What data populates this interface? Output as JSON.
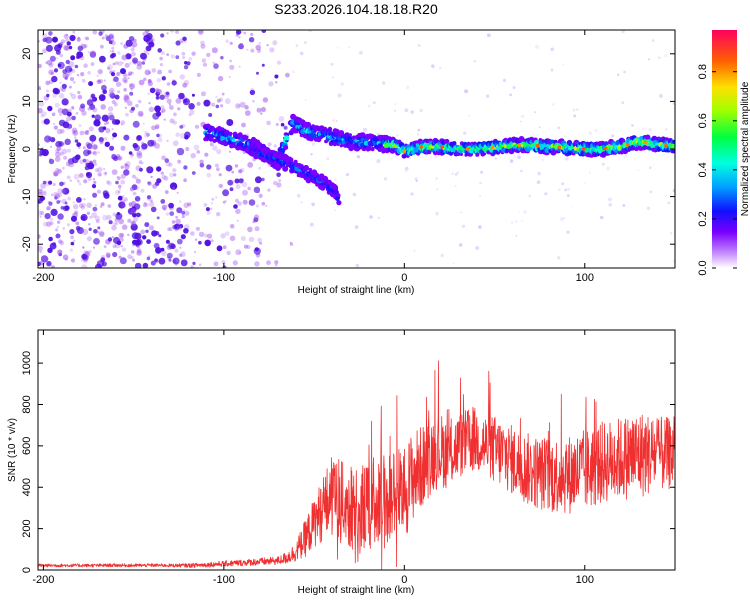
{
  "title": "S233.2026.104.18.18.R20",
  "colors": {
    "snr_line": "#f03030",
    "dot_low": "#a050f0",
    "dot_mid": "#5010e0"
  },
  "chart_data": [
    {
      "type": "heatmap",
      "title": "S233.2026.104.18.18.R20",
      "xlabel": "Height of straight line (km)",
      "ylabel": "Frequency (Hz)",
      "xlim": [
        -203,
        150
      ],
      "ylim": [
        -25,
        25
      ],
      "xticks": [
        -200,
        -100,
        0,
        100
      ],
      "yticks": [
        -20,
        -10,
        0,
        10,
        20
      ],
      "ridge": [
        {
          "x": -108,
          "y": 3.5
        },
        {
          "x": -100,
          "y": 2.5
        },
        {
          "x": -90,
          "y": 1.5
        },
        {
          "x": -80,
          "y": 0
        },
        {
          "x": -70,
          "y": -3
        },
        {
          "x": -62,
          "y": 5.5
        },
        {
          "x": -55,
          "y": 4
        },
        {
          "x": -45,
          "y": 3
        },
        {
          "x": -35,
          "y": 2
        },
        {
          "x": -25,
          "y": 1.5
        },
        {
          "x": -15,
          "y": 1.2
        },
        {
          "x": -5,
          "y": 0.8
        },
        {
          "x": 0,
          "y": -0.5
        },
        {
          "x": 10,
          "y": 0.5
        },
        {
          "x": 20,
          "y": 0.5
        },
        {
          "x": 30,
          "y": 0
        },
        {
          "x": 40,
          "y": 0
        },
        {
          "x": 50,
          "y": 0.3
        },
        {
          "x": 60,
          "y": 0.8
        },
        {
          "x": 70,
          "y": 0.8
        },
        {
          "x": 80,
          "y": 0.5
        },
        {
          "x": 90,
          "y": 0.3
        },
        {
          "x": 100,
          "y": 0
        },
        {
          "x": 110,
          "y": 0
        },
        {
          "x": 120,
          "y": 0.5
        },
        {
          "x": 130,
          "y": 1.5
        },
        {
          "x": 140,
          "y": 1
        },
        {
          "x": 150,
          "y": 0.5
        }
      ],
      "branch": [
        {
          "x": -85,
          "y": 0
        },
        {
          "x": -75,
          "y": -1.5
        },
        {
          "x": -65,
          "y": -3
        },
        {
          "x": -55,
          "y": -5
        },
        {
          "x": -45,
          "y": -7
        },
        {
          "x": -38,
          "y": -9
        },
        {
          "x": -36,
          "y": -11
        }
      ],
      "colorbar": {
        "label": "Normalized spectral amplitude",
        "range": [
          0.0,
          0.97
        ],
        "ticks": [
          0.0,
          0.2,
          0.4,
          0.6,
          0.8
        ],
        "tick_labels": [
          "0.0",
          "0.2",
          "0.4",
          "0.6",
          "0.8"
        ]
      }
    },
    {
      "type": "line",
      "xlabel": "Height of straight line (km)",
      "ylabel": "SNR (10 * v/v)",
      "xlim": [
        -203,
        150
      ],
      "ylim": [
        0,
        1160
      ],
      "xticks": [
        -200,
        -100,
        0,
        100
      ],
      "yticks": [
        0,
        200,
        400,
        600,
        800,
        1000
      ],
      "series": [
        {
          "name": "SNR",
          "x": [
            -203,
            -190,
            -180,
            -170,
            -160,
            -150,
            -140,
            -130,
            -120,
            -110,
            -100,
            -90,
            -80,
            -70,
            -65,
            -60,
            -55,
            -50,
            -45,
            -40,
            -35,
            -30,
            -25,
            -20,
            -15,
            -10,
            -5,
            0,
            5,
            10,
            15,
            20,
            25,
            30,
            35,
            40,
            45,
            50,
            55,
            60,
            65,
            70,
            75,
            80,
            85,
            90,
            95,
            100,
            105,
            110,
            115,
            120,
            125,
            130,
            135,
            140,
            145,
            150
          ],
          "values": [
            22,
            22,
            22,
            22,
            23,
            22,
            23,
            22,
            22,
            25,
            30,
            35,
            40,
            45,
            60,
            90,
            150,
            230,
            300,
            360,
            330,
            300,
            280,
            320,
            340,
            330,
            360,
            380,
            460,
            500,
            560,
            580,
            560,
            600,
            620,
            630,
            600,
            580,
            560,
            530,
            500,
            480,
            470,
            460,
            460,
            460,
            470,
            480,
            500,
            520,
            530,
            540,
            550,
            560,
            560,
            560,
            560,
            560
          ],
          "amplitude": [
            8,
            8,
            8,
            8,
            8,
            8,
            8,
            8,
            10,
            12,
            14,
            16,
            18,
            20,
            30,
            50,
            90,
            120,
            160,
            200,
            200,
            200,
            210,
            220,
            230,
            240,
            250,
            230,
            220,
            200,
            190,
            180,
            170,
            160,
            160,
            160,
            160,
            170,
            170,
            170,
            170,
            180,
            180,
            190,
            190,
            190,
            200,
            200,
            200,
            200,
            200,
            200,
            210,
            220,
            200,
            180,
            180,
            170
          ]
        }
      ]
    }
  ]
}
